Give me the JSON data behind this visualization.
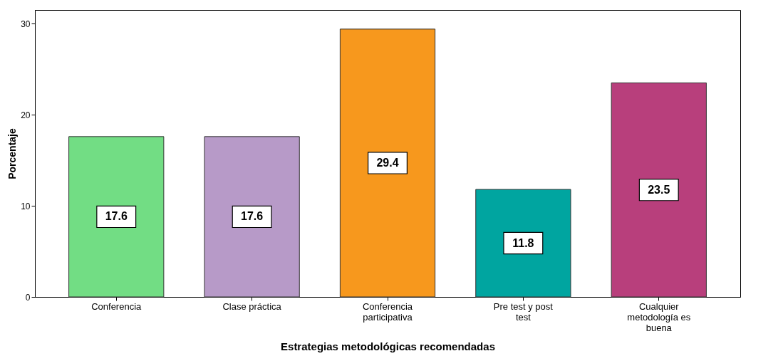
{
  "chart_data": {
    "type": "bar",
    "xlabel": "Estrategias metodológicas recomendadas",
    "ylabel": "Porcentaje",
    "categories": [
      "Conferencia",
      "Clase práctica",
      "Conferencia participativa",
      "Pre test y post test",
      "Cualquier metodología es buena"
    ],
    "values": [
      17.6,
      17.6,
      29.4,
      11.8,
      23.5
    ],
    "colors": [
      "#72dd84",
      "#b79ac8",
      "#f7981d",
      "#00a5a0",
      "#b83f7c"
    ],
    "ylim": [
      0,
      31.5
    ],
    "yticks": [
      0,
      10,
      20,
      30
    ],
    "data_labels": true,
    "grid": false
  }
}
